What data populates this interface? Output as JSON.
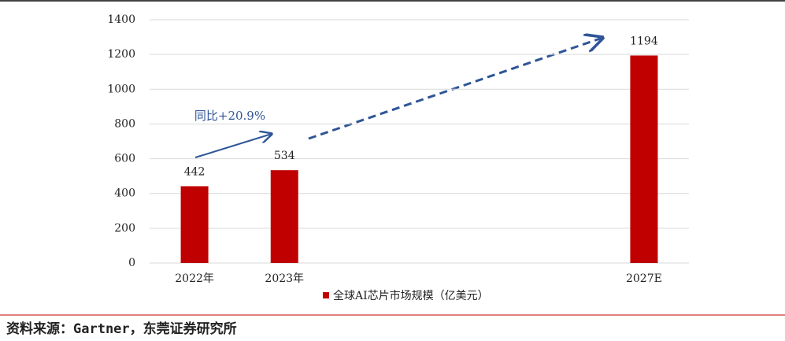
{
  "chart_data": {
    "type": "bar",
    "categories": [
      "2022年",
      "2023年",
      null,
      null,
      null,
      "2027E"
    ],
    "series": [
      {
        "name": "全球AI芯片市场规模（亿美元）",
        "color": "#c00000",
        "values": [
          442,
          534,
          null,
          null,
          null,
          1194
        ]
      }
    ],
    "ylim": [
      0,
      1400
    ],
    "yticks": [
      0,
      200,
      400,
      600,
      800,
      1000,
      1200,
      1400
    ],
    "grid": true,
    "annotation": "同比+20.9%",
    "source": "资料来源：Gartner，东莞证券研究所"
  }
}
